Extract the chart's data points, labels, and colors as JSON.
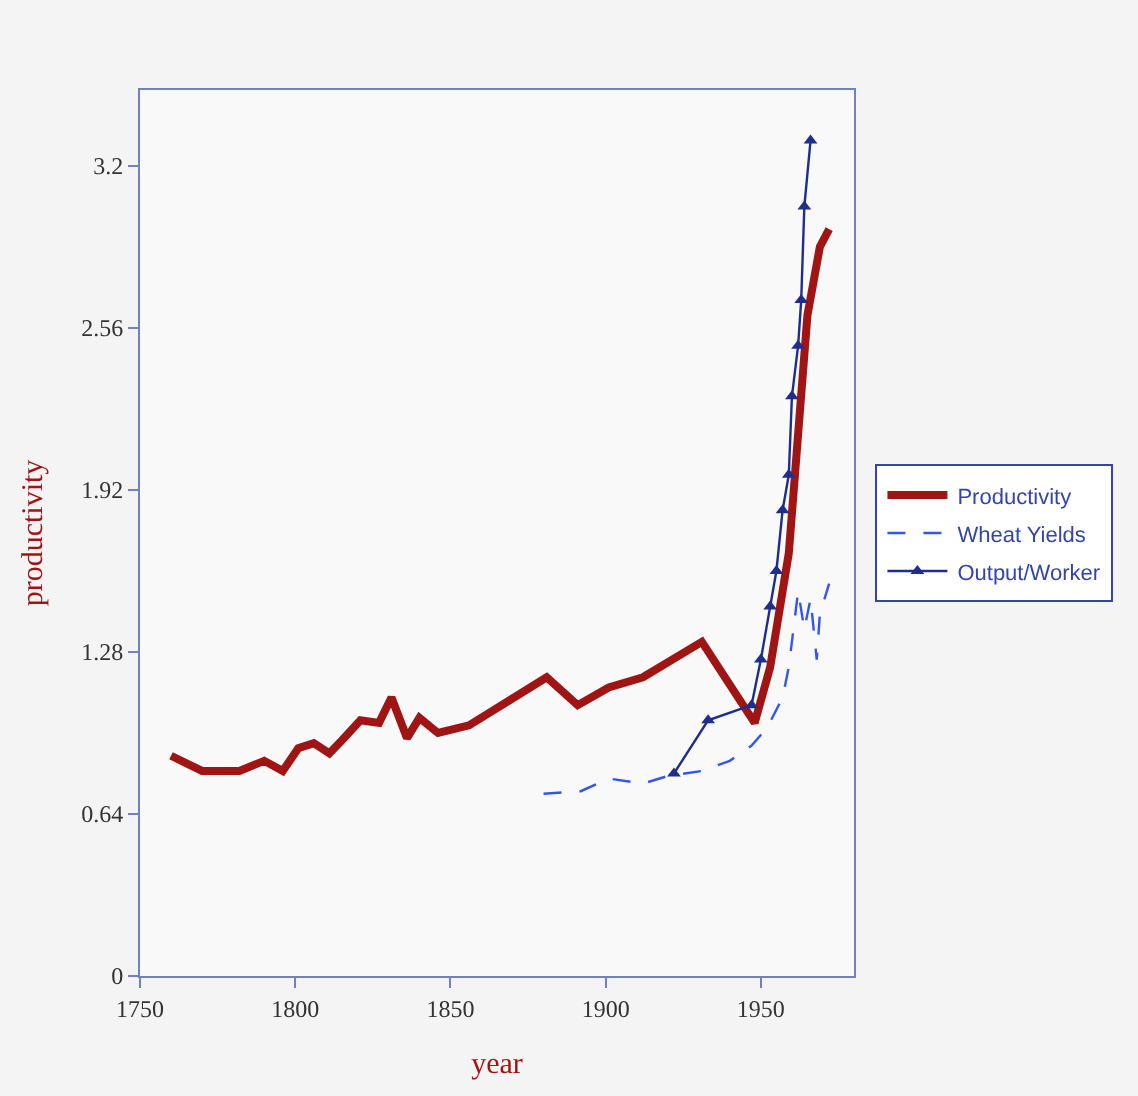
{
  "chart_data": {
    "type": "line",
    "xlabel": "year",
    "ylabel": "productivity",
    "xlim": [
      1750,
      1980
    ],
    "ylim": [
      0,
      3.5
    ],
    "xticks": [
      1750,
      1800,
      1850,
      1900,
      1950
    ],
    "yticks": [
      0,
      0.64,
      1.28,
      1.92,
      2.56,
      3.2
    ],
    "grid": false,
    "legend": "right",
    "series": [
      {
        "name": "Productivity",
        "color": "#a01414",
        "line_style": "solid",
        "marker": "none",
        "x": [
          1760,
          1770,
          1782,
          1790,
          1796,
          1801,
          1806,
          1811,
          1815,
          1821,
          1827,
          1831,
          1836,
          1840,
          1846,
          1856,
          1881,
          1891,
          1901,
          1912,
          1931,
          1948,
          1953,
          1959,
          1962,
          1965,
          1969,
          1972
        ],
        "values": [
          0.87,
          0.81,
          0.81,
          0.85,
          0.81,
          0.9,
          0.92,
          0.88,
          0.93,
          1.01,
          1.0,
          1.1,
          0.94,
          1.02,
          0.96,
          0.99,
          1.18,
          1.07,
          1.14,
          1.18,
          1.32,
          1.0,
          1.22,
          1.67,
          2.14,
          2.61,
          2.88,
          2.95
        ]
      },
      {
        "name": "Wheat Yields",
        "color": "#3355ee",
        "line_style": "dashed",
        "marker": "none",
        "x": [
          1880,
          1892,
          1901,
          1912,
          1920,
          1931,
          1940,
          1947,
          1952,
          1957,
          1959,
          1962,
          1964,
          1966,
          1968,
          1969,
          1972
        ],
        "values": [
          0.72,
          0.73,
          0.78,
          0.76,
          0.79,
          0.81,
          0.85,
          0.91,
          0.98,
          1.1,
          1.22,
          1.52,
          1.37,
          1.49,
          1.25,
          1.43,
          1.55
        ]
      },
      {
        "name": "Output/Worker",
        "color": "#1f2d8c",
        "line_style": "solid",
        "marker": "triangle",
        "x": [
          1922,
          1933,
          1947,
          1950,
          1953,
          1955,
          1957,
          1959,
          1960,
          1962,
          1963,
          1964,
          1966
        ],
        "values": [
          0.8,
          1.01,
          1.07,
          1.25,
          1.46,
          1.6,
          1.84,
          1.98,
          2.29,
          2.49,
          2.67,
          3.04,
          3.3
        ]
      }
    ]
  }
}
